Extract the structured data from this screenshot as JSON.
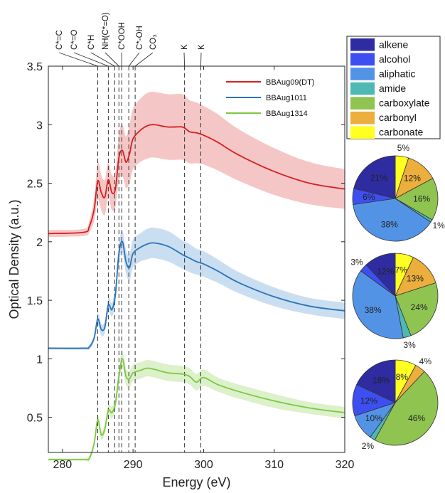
{
  "chart_data": [
    {
      "type": "line",
      "xlabel": "Energy (eV)",
      "ylabel": "Optical Density (a.u.)",
      "xlim": [
        278,
        320
      ],
      "ylim": [
        0.2,
        3.5
      ],
      "xticks": [
        "280",
        "290",
        "300",
        "310",
        "320"
      ],
      "yticks": [
        "0.5",
        "1",
        "1.5",
        "2",
        "2.5",
        "3",
        "3.5"
      ],
      "grid": false,
      "legend_position": "top-right",
      "peak_lines": [
        {
          "label": "C*=C",
          "energy": 285.0
        },
        {
          "label": "C*=O",
          "energy": 286.5
        },
        {
          "label": "C*H",
          "energy": 287.4
        },
        {
          "label": "NH(C*=O)",
          "energy": 288.0
        },
        {
          "label": "C*OOH",
          "energy": 288.4
        },
        {
          "label": "C*-OH",
          "energy": 289.4
        },
        {
          "label": "CO₃",
          "energy": 290.3
        },
        {
          "label": "K",
          "energy": 297.3
        },
        {
          "label": "K",
          "energy": 299.6
        }
      ],
      "series": [
        {
          "name": "BBAug09(DT)",
          "color": "#d71f1f",
          "band_color": "#f2b8b8",
          "x": [
            278,
            283,
            283.8,
            284.5,
            285.0,
            285.5,
            286.0,
            286.5,
            287.0,
            287.5,
            288.0,
            288.5,
            289.0,
            289.5,
            290.0,
            291.0,
            292.0,
            293.0,
            295.0,
            297.0,
            298.0,
            299.0,
            300.0,
            302.0,
            305.0,
            310.0,
            315.0,
            320.0
          ],
          "y": [
            2.07,
            2.08,
            2.13,
            2.28,
            2.52,
            2.42,
            2.38,
            2.53,
            2.42,
            2.45,
            2.72,
            2.78,
            2.68,
            2.75,
            2.88,
            2.95,
            2.99,
            3.0,
            2.98,
            2.98,
            2.94,
            2.93,
            2.91,
            2.85,
            2.74,
            2.6,
            2.5,
            2.45
          ],
          "band": [
            0.03,
            0.03,
            0.05,
            0.1,
            0.16,
            0.15,
            0.15,
            0.15,
            0.15,
            0.15,
            0.2,
            0.22,
            0.22,
            0.25,
            0.26,
            0.27,
            0.28,
            0.28,
            0.28,
            0.28,
            0.27,
            0.26,
            0.25,
            0.24,
            0.22,
            0.2,
            0.18,
            0.17
          ]
        },
        {
          "name": "BBAug1011",
          "color": "#2b73b8",
          "band_color": "#bcd6ee",
          "x": [
            278,
            283,
            283.8,
            284.5,
            285.0,
            285.5,
            286.0,
            286.5,
            287.0,
            287.5,
            288.0,
            288.5,
            289.0,
            289.5,
            290.0,
            291.0,
            292.0,
            293.0,
            295.0,
            297.0,
            298.0,
            299.0,
            300.0,
            302.0,
            305.0,
            310.0,
            315.0,
            320.0
          ],
          "y": [
            1.09,
            1.09,
            1.1,
            1.18,
            1.34,
            1.25,
            1.27,
            1.46,
            1.42,
            1.55,
            1.9,
            2.0,
            1.83,
            1.78,
            1.9,
            1.95,
            1.98,
            1.99,
            1.96,
            1.89,
            1.86,
            1.83,
            1.81,
            1.75,
            1.65,
            1.53,
            1.45,
            1.41
          ],
          "band": [
            0.01,
            0.01,
            0.02,
            0.03,
            0.05,
            0.05,
            0.05,
            0.06,
            0.06,
            0.07,
            0.08,
            0.09,
            0.1,
            0.11,
            0.12,
            0.12,
            0.13,
            0.13,
            0.13,
            0.12,
            0.12,
            0.11,
            0.11,
            0.1,
            0.09,
            0.08,
            0.07,
            0.07
          ]
        },
        {
          "name": "BBAug1314",
          "color": "#7ac943",
          "band_color": "#d3ecbc",
          "x": [
            278,
            283,
            283.8,
            284.5,
            285.0,
            285.5,
            286.0,
            286.5,
            287.0,
            287.5,
            288.0,
            288.5,
            289.0,
            289.5,
            290.0,
            291.0,
            292.0,
            293.0,
            295.0,
            297.0,
            298.0,
            299.0,
            300.0,
            302.0,
            305.0,
            310.0,
            315.0,
            320.0
          ],
          "y": [
            0.14,
            0.14,
            0.15,
            0.28,
            0.48,
            0.35,
            0.4,
            0.56,
            0.54,
            0.62,
            0.85,
            1.0,
            0.85,
            0.83,
            0.88,
            0.9,
            0.92,
            0.91,
            0.88,
            0.87,
            0.85,
            0.8,
            0.84,
            0.78,
            0.72,
            0.64,
            0.58,
            0.54
          ],
          "band": [
            0.01,
            0.01,
            0.02,
            0.03,
            0.04,
            0.04,
            0.04,
            0.05,
            0.05,
            0.05,
            0.06,
            0.07,
            0.07,
            0.07,
            0.07,
            0.07,
            0.07,
            0.07,
            0.07,
            0.07,
            0.07,
            0.07,
            0.07,
            0.06,
            0.06,
            0.06,
            0.05,
            0.05
          ]
        }
      ]
    },
    {
      "type": "pie",
      "legend": [
        {
          "label": "alkene",
          "color": "#2e2ca0"
        },
        {
          "label": "alcohol",
          "color": "#3d4ff0"
        },
        {
          "label": "aliphatic",
          "color": "#5393e6"
        },
        {
          "label": "amide",
          "color": "#4fb8b4"
        },
        {
          "label": "carboxylate",
          "color": "#8fc451"
        },
        {
          "label": "carbonyl",
          "color": "#ecae3c"
        },
        {
          "label": "carbonate",
          "color": "#ffff22"
        }
      ],
      "pies": [
        {
          "series": "BBAug09(DT)",
          "slices": [
            {
              "category": "carbonate",
              "value": 5,
              "label": "5%"
            },
            {
              "category": "carbonyl",
              "value": 12,
              "label": "12%"
            },
            {
              "category": "carboxylate",
              "value": 16,
              "label": "16%"
            },
            {
              "category": "amide",
              "value": 1,
              "label": "1%"
            },
            {
              "category": "aliphatic",
              "value": 38,
              "label": "38%"
            },
            {
              "category": "alcohol",
              "value": 6,
              "label": "6%"
            },
            {
              "category": "alkene",
              "value": 21,
              "label": "21%"
            }
          ]
        },
        {
          "series": "BBAug1011",
          "slices": [
            {
              "category": "carbonate",
              "value": 7,
              "label": "7%"
            },
            {
              "category": "carbonyl",
              "value": 13,
              "label": "13%"
            },
            {
              "category": "carboxylate",
              "value": 24,
              "label": "24%"
            },
            {
              "category": "amide",
              "value": 3,
              "label": "3%"
            },
            {
              "category": "aliphatic",
              "value": 38,
              "label": "38%"
            },
            {
              "category": "alcohol",
              "value": 3,
              "label": "3%"
            },
            {
              "category": "alkene",
              "value": 12,
              "label": "12%"
            }
          ]
        },
        {
          "series": "BBAug1314",
          "slices": [
            {
              "category": "carbonate",
              "value": 8,
              "label": "8%"
            },
            {
              "category": "carbonyl",
              "value": 4,
              "label": "4%"
            },
            {
              "category": "carboxylate",
              "value": 46,
              "label": "46%"
            },
            {
              "category": "amide",
              "value": 2,
              "label": "2%"
            },
            {
              "category": "aliphatic",
              "value": 10,
              "label": "10%"
            },
            {
              "category": "alcohol",
              "value": 12,
              "label": "12%"
            },
            {
              "category": "alkene",
              "value": 18,
              "label": "18%"
            }
          ]
        }
      ]
    }
  ]
}
